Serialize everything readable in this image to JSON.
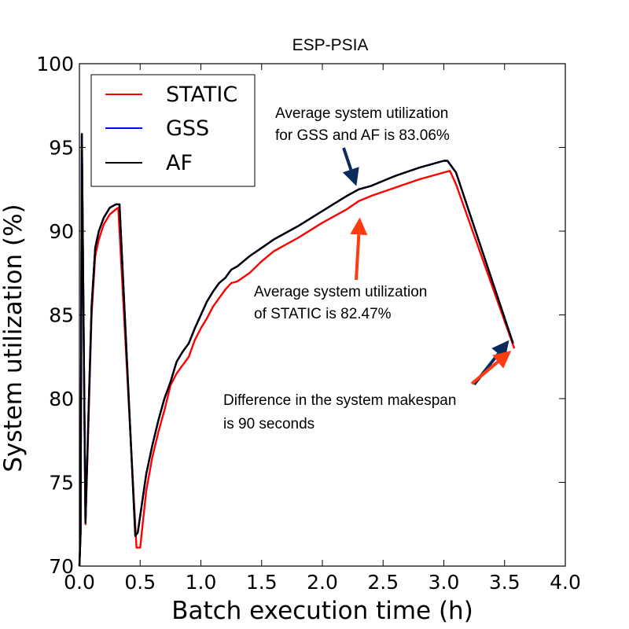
{
  "chart_data": {
    "type": "line",
    "title": "ESP-PSIA",
    "xlabel": "Batch execution time (h)",
    "ylabel": "System utilization (%)",
    "xlim": [
      0.0,
      4.0
    ],
    "ylim": [
      70,
      100
    ],
    "xticks": [
      "0.0",
      "0.5",
      "1.0",
      "1.5",
      "2.0",
      "2.5",
      "3.0",
      "3.5",
      "4.0"
    ],
    "yticks": [
      "70",
      "75",
      "80",
      "85",
      "90",
      "95",
      "100"
    ],
    "grid": false,
    "legend_position": "top-left",
    "series": [
      {
        "name": "STATIC",
        "color": "#ff0000",
        "points": [
          [
            0.0,
            70.0
          ],
          [
            0.01,
            72.0
          ],
          [
            0.02,
            95.8
          ],
          [
            0.04,
            80.0
          ],
          [
            0.05,
            72.5
          ],
          [
            0.08,
            80.0
          ],
          [
            0.1,
            85.0
          ],
          [
            0.13,
            88.5
          ],
          [
            0.16,
            89.5
          ],
          [
            0.2,
            90.4
          ],
          [
            0.25,
            91.0
          ],
          [
            0.3,
            91.3
          ],
          [
            0.32,
            91.4
          ],
          [
            0.47,
            71.1
          ],
          [
            0.5,
            71.1
          ],
          [
            0.55,
            74.5
          ],
          [
            0.6,
            76.5
          ],
          [
            0.65,
            78.0
          ],
          [
            0.7,
            79.3
          ],
          [
            0.75,
            80.8
          ],
          [
            0.8,
            81.5
          ],
          [
            0.85,
            82.0
          ],
          [
            0.9,
            82.5
          ],
          [
            0.95,
            83.5
          ],
          [
            1.0,
            84.2
          ],
          [
            1.05,
            84.8
          ],
          [
            1.1,
            85.5
          ],
          [
            1.15,
            86.0
          ],
          [
            1.2,
            86.5
          ],
          [
            1.25,
            86.9
          ],
          [
            1.3,
            87.0
          ],
          [
            1.4,
            87.5
          ],
          [
            1.5,
            88.2
          ],
          [
            1.6,
            88.8
          ],
          [
            1.8,
            89.6
          ],
          [
            2.0,
            90.5
          ],
          [
            2.2,
            91.3
          ],
          [
            2.3,
            91.8
          ],
          [
            2.4,
            92.1
          ],
          [
            2.6,
            92.6
          ],
          [
            2.8,
            93.1
          ],
          [
            3.0,
            93.5
          ],
          [
            3.05,
            93.6
          ],
          [
            3.1,
            92.8
          ],
          [
            3.58,
            83.0
          ]
        ]
      },
      {
        "name": "GSS",
        "color": "#0000ff",
        "points": [
          [
            0.0,
            70.0
          ],
          [
            0.01,
            72.0
          ],
          [
            0.02,
            95.8
          ],
          [
            0.04,
            80.0
          ],
          [
            0.05,
            72.6
          ],
          [
            0.08,
            80.5
          ],
          [
            0.1,
            85.5
          ],
          [
            0.13,
            89.0
          ],
          [
            0.16,
            90.0
          ],
          [
            0.2,
            90.8
          ],
          [
            0.25,
            91.4
          ],
          [
            0.3,
            91.6
          ],
          [
            0.33,
            91.6
          ],
          [
            0.46,
            71.8
          ],
          [
            0.48,
            72.0
          ],
          [
            0.55,
            75.5
          ],
          [
            0.6,
            77.2
          ],
          [
            0.65,
            78.7
          ],
          [
            0.7,
            80.0
          ],
          [
            0.75,
            81.0
          ],
          [
            0.8,
            82.2
          ],
          [
            0.85,
            82.8
          ],
          [
            0.9,
            83.3
          ],
          [
            0.95,
            84.2
          ],
          [
            1.0,
            85.0
          ],
          [
            1.05,
            85.8
          ],
          [
            1.1,
            86.4
          ],
          [
            1.15,
            86.9
          ],
          [
            1.2,
            87.2
          ],
          [
            1.25,
            87.7
          ],
          [
            1.3,
            87.9
          ],
          [
            1.4,
            88.5
          ],
          [
            1.5,
            89.0
          ],
          [
            1.6,
            89.5
          ],
          [
            1.8,
            90.3
          ],
          [
            2.0,
            91.2
          ],
          [
            2.2,
            92.1
          ],
          [
            2.3,
            92.5
          ],
          [
            2.4,
            92.7
          ],
          [
            2.6,
            93.3
          ],
          [
            2.8,
            93.8
          ],
          [
            3.0,
            94.2
          ],
          [
            3.03,
            94.2
          ],
          [
            3.1,
            93.5
          ],
          [
            3.57,
            83.3
          ]
        ]
      },
      {
        "name": "AF",
        "color": "#000000",
        "points": [
          [
            0.0,
            70.0
          ],
          [
            0.01,
            72.0
          ],
          [
            0.02,
            95.8
          ],
          [
            0.04,
            80.0
          ],
          [
            0.05,
            72.6
          ],
          [
            0.08,
            80.5
          ],
          [
            0.1,
            85.5
          ],
          [
            0.13,
            89.0
          ],
          [
            0.16,
            90.0
          ],
          [
            0.2,
            90.8
          ],
          [
            0.25,
            91.4
          ],
          [
            0.3,
            91.6
          ],
          [
            0.33,
            91.6
          ],
          [
            0.46,
            71.8
          ],
          [
            0.48,
            72.0
          ],
          [
            0.55,
            75.5
          ],
          [
            0.6,
            77.2
          ],
          [
            0.65,
            78.7
          ],
          [
            0.7,
            80.0
          ],
          [
            0.75,
            81.0
          ],
          [
            0.8,
            82.2
          ],
          [
            0.85,
            82.8
          ],
          [
            0.9,
            83.3
          ],
          [
            0.95,
            84.2
          ],
          [
            1.0,
            85.0
          ],
          [
            1.05,
            85.8
          ],
          [
            1.1,
            86.4
          ],
          [
            1.15,
            86.9
          ],
          [
            1.2,
            87.2
          ],
          [
            1.25,
            87.7
          ],
          [
            1.3,
            87.9
          ],
          [
            1.4,
            88.5
          ],
          [
            1.5,
            89.0
          ],
          [
            1.6,
            89.5
          ],
          [
            1.8,
            90.3
          ],
          [
            2.0,
            91.2
          ],
          [
            2.2,
            92.1
          ],
          [
            2.3,
            92.5
          ],
          [
            2.4,
            92.7
          ],
          [
            2.6,
            93.3
          ],
          [
            2.8,
            93.8
          ],
          [
            3.0,
            94.2
          ],
          [
            3.03,
            94.2
          ],
          [
            3.1,
            93.5
          ],
          [
            3.57,
            83.3
          ]
        ]
      }
    ],
    "annotations": [
      {
        "id": "gss-af",
        "lines": [
          "Average system utilization",
          "for GSS and AF is 83.06%"
        ],
        "arrow_color": "#0b2a5e",
        "arrow_tip": [
          2.28,
          92.6
        ]
      },
      {
        "id": "static",
        "lines": [
          "Average system utilization",
          "of STATIC is 82.47%"
        ],
        "arrow_color": "#ff3b10",
        "arrow_tip": [
          2.25,
          91.2
        ]
      },
      {
        "id": "makespan",
        "lines": [
          "Difference in the system makespan",
          "is 90 seconds"
        ],
        "arrow_color": "#ff3b10",
        "arrow_tip": [
          3.58,
          83.0
        ],
        "secondary_arrow_color": "#0b2a5e",
        "secondary_arrow_tip": [
          3.55,
          83.4
        ]
      }
    ]
  }
}
